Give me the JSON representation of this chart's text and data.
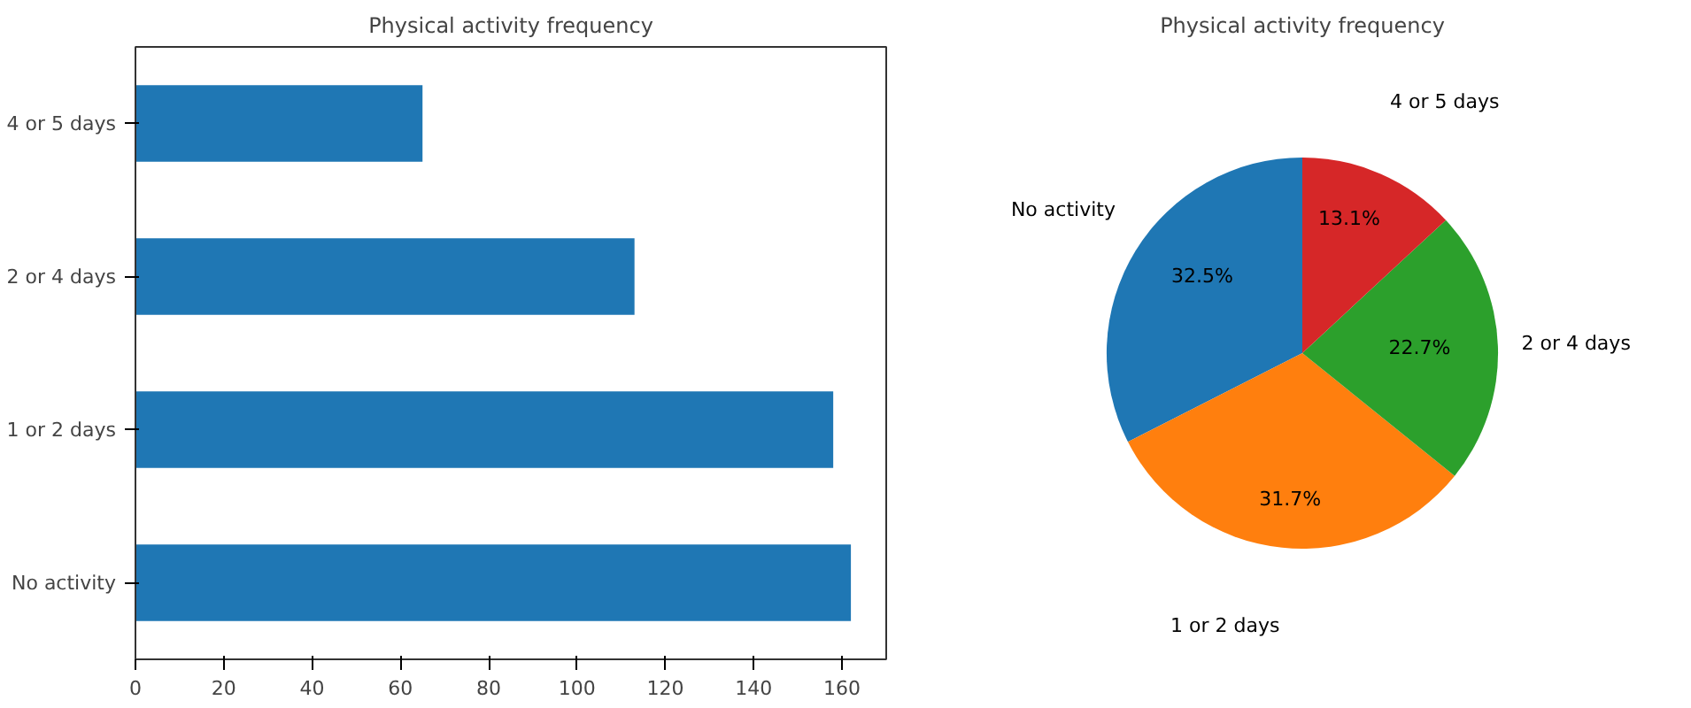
{
  "chart_data": [
    {
      "type": "bar",
      "title": "Physical activity frequency",
      "orientation": "horizontal",
      "categories": [
        "4 or 5 days",
        "2 or 4 days",
        "1 or 2 days",
        "No activity"
      ],
      "values": [
        65,
        113,
        158,
        162
      ],
      "color": "#1f77b4",
      "xlim": [
        0,
        170
      ],
      "xticks": [
        0,
        20,
        40,
        60,
        80,
        100,
        120,
        140,
        160
      ],
      "grid": false
    },
    {
      "type": "pie",
      "title": "Physical activity frequency",
      "categories": [
        "No activity",
        "1 or 2 days",
        "2 or 4 days",
        "4 or 5 days"
      ],
      "values": [
        32.5,
        31.7,
        22.7,
        13.1
      ],
      "value_labels": [
        "32.5%",
        "31.7%",
        "22.7%",
        "13.1%"
      ],
      "colors": [
        "#1f77b4",
        "#ff7f0e",
        "#2ca02c",
        "#d62728"
      ]
    }
  ]
}
